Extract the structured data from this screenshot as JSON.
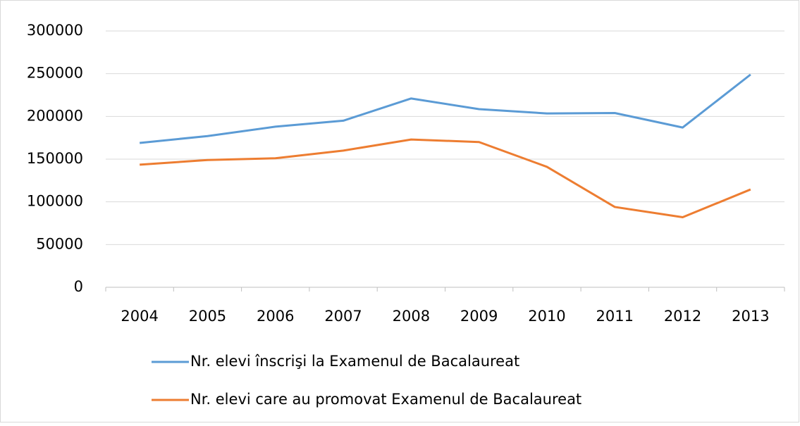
{
  "chart_data": {
    "type": "line",
    "categories": [
      "2004",
      "2005",
      "2006",
      "2007",
      "2008",
      "2009",
      "2010",
      "2011",
      "2012",
      "2013"
    ],
    "series": [
      {
        "name": "Nr. elevi înscrişi la Examenul de Bacalaureat",
        "color": "#5b9bd5",
        "values": [
          169000,
          177000,
          188000,
          195000,
          221000,
          208500,
          203500,
          204000,
          187000,
          249000
        ]
      },
      {
        "name": "Nr. elevi care au promovat Examenul de Bacalaureat",
        "color": "#ed7d31",
        "values": [
          143500,
          149000,
          151000,
          160000,
          173000,
          170000,
          141000,
          94000,
          82000,
          114500
        ]
      }
    ],
    "ylim": [
      0,
      300000
    ],
    "yticks": [
      0,
      50000,
      100000,
      150000,
      200000,
      250000,
      300000
    ],
    "grid": true,
    "legend": "bottom"
  }
}
